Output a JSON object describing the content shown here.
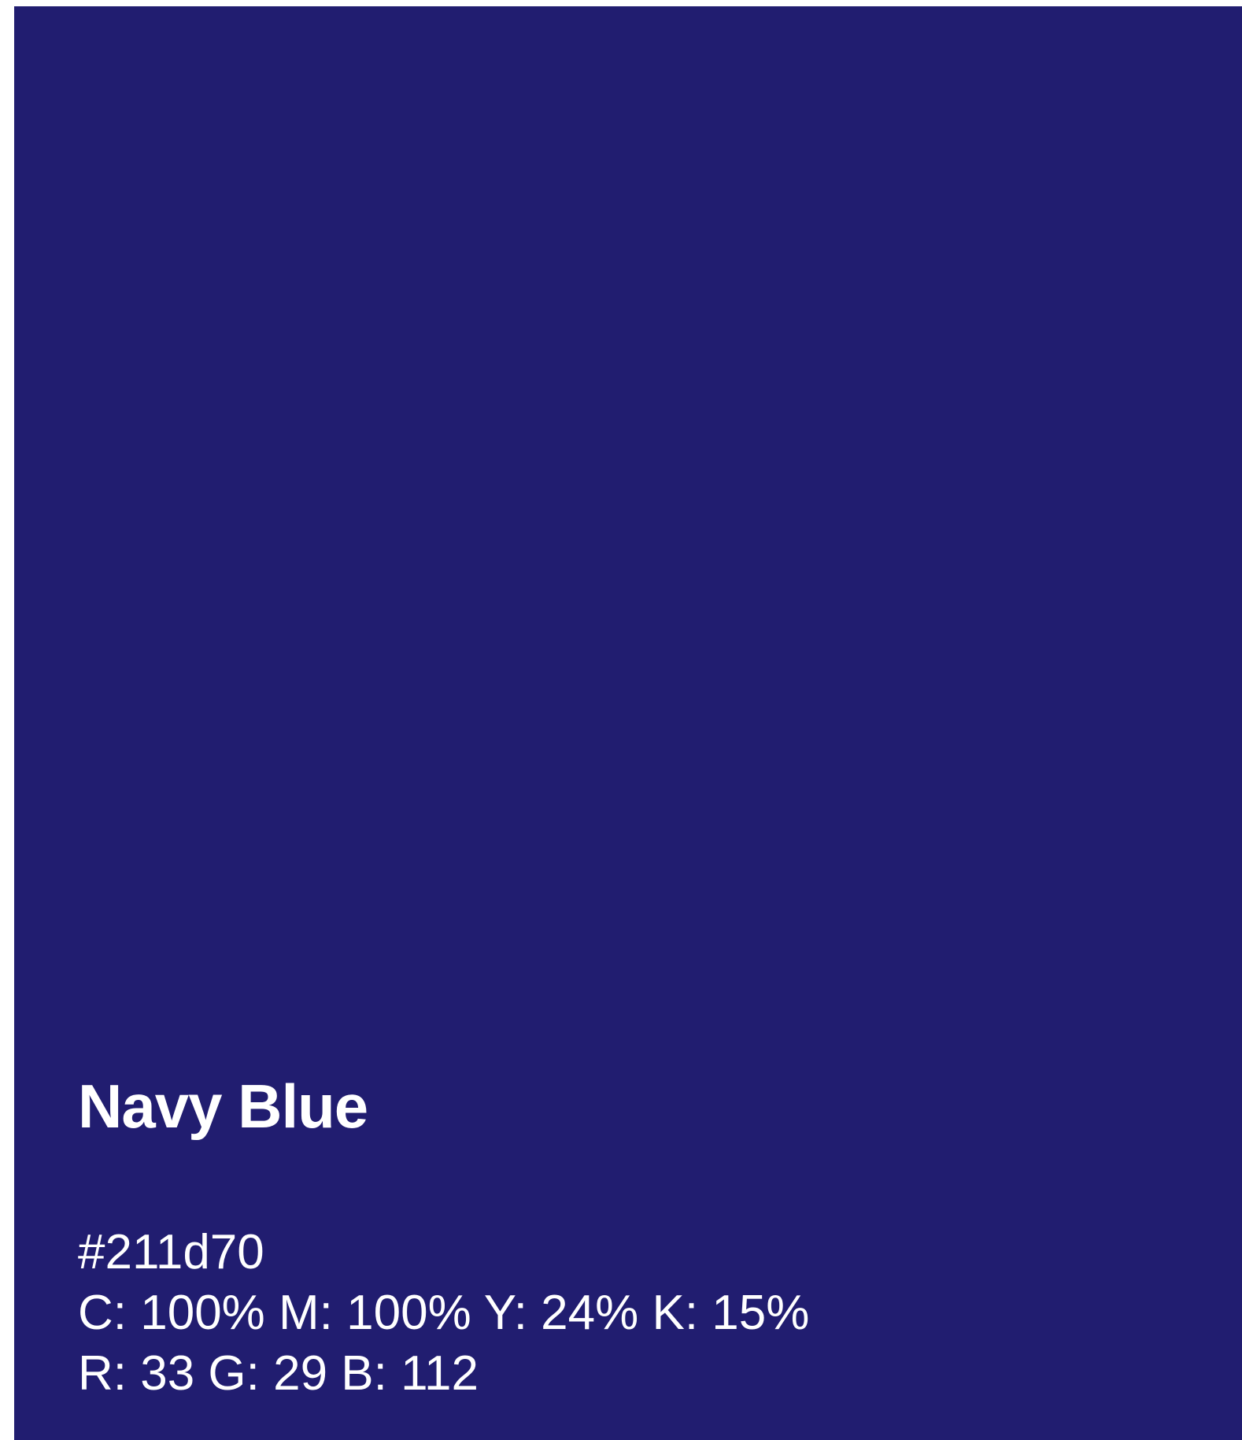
{
  "swatch": {
    "name": "Navy Blue",
    "hex": "#211d70",
    "cmyk": "C: 100% M: 100% Y: 24% K: 15%",
    "rgb": "R: 33 G: 29 B: 112",
    "background_color": "#211d70",
    "text_color": "#ffffff"
  }
}
